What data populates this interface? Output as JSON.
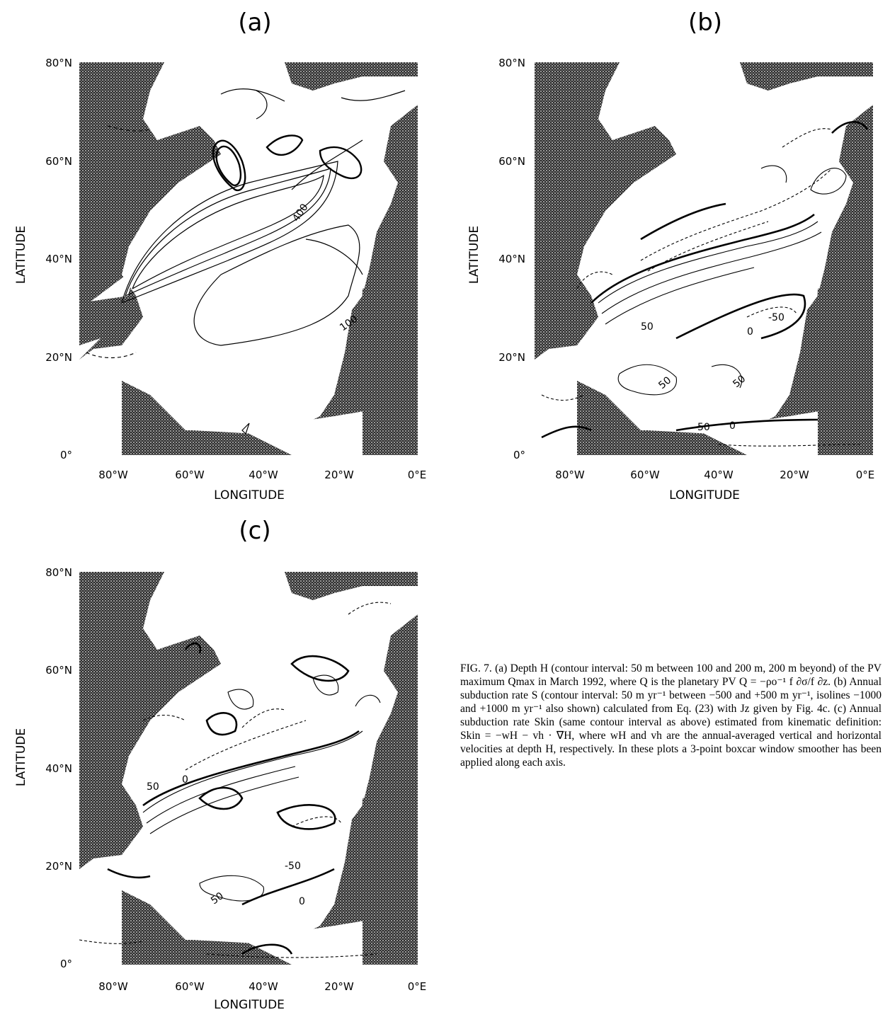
{
  "panels": [
    {
      "id": "a",
      "label": "(a)",
      "contour_labels": [
        "400",
        "100"
      ]
    },
    {
      "id": "b",
      "label": "(b)",
      "contour_labels": [
        "50",
        "0",
        "-50",
        "50",
        "50",
        "50",
        "0"
      ]
    },
    {
      "id": "c",
      "label": "(c)",
      "contour_labels": [
        "50",
        "0",
        "-50",
        "50",
        "0"
      ]
    }
  ],
  "axes": {
    "xlabel": "LONGITUDE",
    "ylabel": "LATITUDE",
    "xticks": [
      "80°W",
      "60°W",
      "40°W",
      "20°W",
      "0°E"
    ],
    "yticks_a": [
      "80°N",
      "60°N",
      "40°N",
      "20°N",
      "0°"
    ],
    "yticks": [
      "80°N",
      "60°N",
      "40°N",
      "20°N",
      "0°"
    ]
  },
  "caption": {
    "text": "FIG. 7. (a) Depth H (contour interval: 50 m between 100 and 200 m, 200 m beyond) of the PV maximum Qmax in March 1992, where Q is the planetary PV Q = −ρo⁻¹ f ∂σ/f ∂z. (b) Annual subduction rate S (contour interval: 50 m yr⁻¹ between −500 and +500 m yr⁻¹, isolines −1000 and +1000 m yr⁻¹ also shown) calculated from Eq. (23) with Jz given by Fig. 4c. (c) Annual subduction rate Skin (same contour interval as above) estimated from kinematic definition: Skin = −wH − vh · ∇H, where wH and vh are the annual-averaged vertical and horizontal velocities at depth H, respectively. In these plots a 3-point boxcar window smoother has been applied along each axis."
  },
  "colors": {
    "land": "#3a3a3a",
    "ocean": "#ffffff",
    "contour": "#000000"
  }
}
